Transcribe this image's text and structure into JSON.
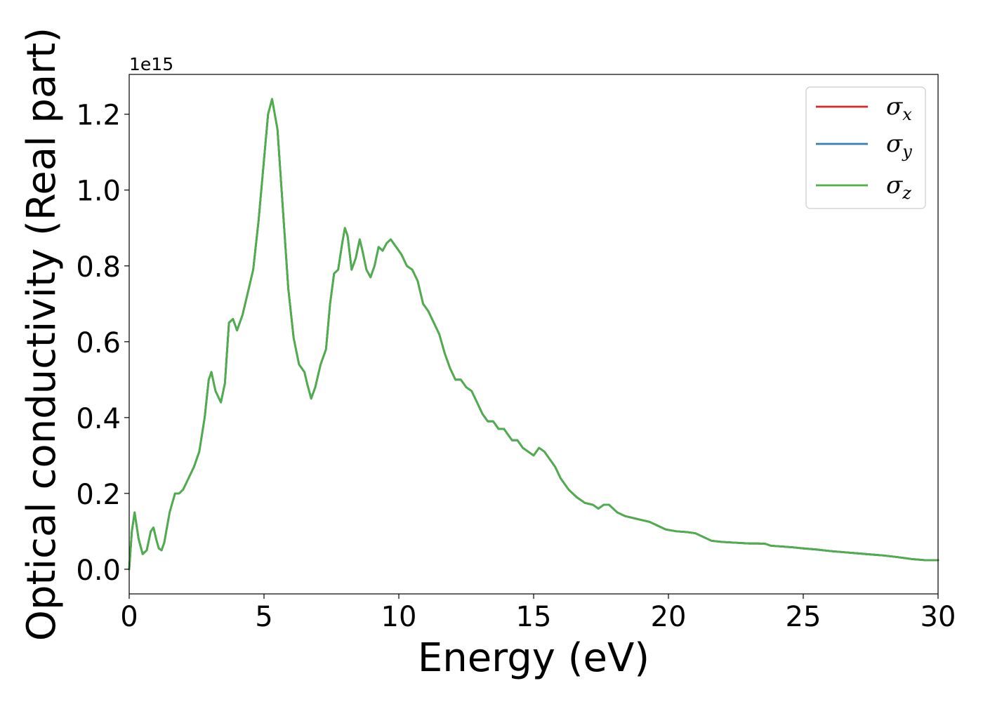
{
  "chart_data": {
    "type": "line",
    "title": "",
    "xlabel": "Energy (eV)",
    "ylabel": "Optical conductivity (Real part)",
    "y_offset_label": "1e15",
    "xlim": [
      0,
      30
    ],
    "ylim": [
      -0.065,
      1.305
    ],
    "x_ticks": [
      0,
      5,
      10,
      15,
      20,
      25,
      30
    ],
    "x_tick_labels": [
      "0",
      "5",
      "10",
      "15",
      "20",
      "25",
      "30"
    ],
    "y_ticks": [
      0.0,
      0.2,
      0.4,
      0.6,
      0.8,
      1.0,
      1.2
    ],
    "y_tick_labels": [
      "0.0",
      "0.2",
      "0.4",
      "0.6",
      "0.8",
      "1.0",
      "1.2"
    ],
    "grid": false,
    "legend_position": "top-right",
    "x": [
      0.0,
      0.1,
      0.2,
      0.35,
      0.5,
      0.65,
      0.8,
      0.9,
      1.0,
      1.1,
      1.2,
      1.3,
      1.5,
      1.7,
      1.85,
      2.0,
      2.2,
      2.4,
      2.6,
      2.8,
      2.95,
      3.05,
      3.2,
      3.4,
      3.55,
      3.7,
      3.85,
      4.0,
      4.2,
      4.4,
      4.6,
      4.8,
      5.0,
      5.15,
      5.3,
      5.5,
      5.7,
      5.9,
      6.1,
      6.3,
      6.5,
      6.6,
      6.75,
      6.9,
      7.1,
      7.3,
      7.45,
      7.6,
      7.75,
      7.9,
      8.0,
      8.1,
      8.25,
      8.4,
      8.55,
      8.65,
      8.8,
      8.95,
      9.1,
      9.25,
      9.4,
      9.55,
      9.7,
      9.9,
      10.1,
      10.3,
      10.5,
      10.7,
      10.9,
      11.1,
      11.3,
      11.5,
      11.7,
      11.9,
      12.1,
      12.3,
      12.5,
      12.7,
      12.9,
      13.1,
      13.3,
      13.5,
      13.7,
      13.9,
      14.0,
      14.2,
      14.4,
      14.6,
      14.8,
      15.0,
      15.2,
      15.4,
      15.6,
      15.8,
      16.0,
      16.3,
      16.6,
      16.9,
      17.2,
      17.4,
      17.6,
      17.8,
      18.1,
      18.4,
      18.7,
      19.0,
      19.3,
      19.6,
      19.9,
      20.3,
      20.7,
      21.0,
      21.3,
      21.6,
      22.0,
      22.5,
      23.0,
      23.3,
      23.6,
      23.8,
      24.2,
      24.6,
      25.0,
      25.5,
      26.0,
      26.5,
      27.0,
      27.5,
      28.0,
      28.5,
      29.0,
      29.5,
      30.0
    ],
    "series": [
      {
        "name": "σx",
        "color": "#d62728",
        "values": [
          0.0,
          0.1,
          0.15,
          0.08,
          0.04,
          0.05,
          0.1,
          0.11,
          0.08,
          0.055,
          0.05,
          0.07,
          0.15,
          0.2,
          0.2,
          0.21,
          0.24,
          0.27,
          0.31,
          0.4,
          0.5,
          0.52,
          0.47,
          0.44,
          0.49,
          0.65,
          0.66,
          0.63,
          0.67,
          0.73,
          0.79,
          0.92,
          1.08,
          1.2,
          1.24,
          1.16,
          0.95,
          0.74,
          0.61,
          0.54,
          0.52,
          0.49,
          0.45,
          0.48,
          0.54,
          0.58,
          0.7,
          0.78,
          0.79,
          0.86,
          0.9,
          0.88,
          0.79,
          0.82,
          0.87,
          0.84,
          0.79,
          0.77,
          0.8,
          0.85,
          0.84,
          0.86,
          0.87,
          0.85,
          0.83,
          0.8,
          0.79,
          0.76,
          0.7,
          0.68,
          0.65,
          0.62,
          0.57,
          0.53,
          0.5,
          0.5,
          0.48,
          0.47,
          0.44,
          0.41,
          0.39,
          0.39,
          0.37,
          0.37,
          0.36,
          0.34,
          0.34,
          0.32,
          0.31,
          0.3,
          0.32,
          0.31,
          0.29,
          0.27,
          0.24,
          0.21,
          0.19,
          0.175,
          0.17,
          0.16,
          0.17,
          0.17,
          0.15,
          0.14,
          0.135,
          0.13,
          0.125,
          0.115,
          0.105,
          0.1,
          0.098,
          0.095,
          0.085,
          0.075,
          0.072,
          0.07,
          0.068,
          0.068,
          0.067,
          0.062,
          0.06,
          0.058,
          0.055,
          0.052,
          0.048,
          0.045,
          0.042,
          0.039,
          0.036,
          0.032,
          0.027,
          0.024,
          0.024
        ]
      },
      {
        "name": "σy",
        "color": "#377eb8",
        "values": [
          0.0,
          0.1,
          0.15,
          0.08,
          0.04,
          0.05,
          0.1,
          0.11,
          0.08,
          0.055,
          0.05,
          0.07,
          0.15,
          0.2,
          0.2,
          0.21,
          0.24,
          0.27,
          0.31,
          0.4,
          0.5,
          0.52,
          0.47,
          0.44,
          0.49,
          0.65,
          0.66,
          0.63,
          0.67,
          0.73,
          0.79,
          0.92,
          1.08,
          1.2,
          1.24,
          1.16,
          0.95,
          0.74,
          0.61,
          0.54,
          0.52,
          0.49,
          0.45,
          0.48,
          0.54,
          0.58,
          0.7,
          0.78,
          0.79,
          0.86,
          0.9,
          0.88,
          0.79,
          0.82,
          0.87,
          0.84,
          0.79,
          0.77,
          0.8,
          0.85,
          0.84,
          0.86,
          0.87,
          0.85,
          0.83,
          0.8,
          0.79,
          0.76,
          0.7,
          0.68,
          0.65,
          0.62,
          0.57,
          0.53,
          0.5,
          0.5,
          0.48,
          0.47,
          0.44,
          0.41,
          0.39,
          0.39,
          0.37,
          0.37,
          0.36,
          0.34,
          0.34,
          0.32,
          0.31,
          0.3,
          0.32,
          0.31,
          0.29,
          0.27,
          0.24,
          0.21,
          0.19,
          0.175,
          0.17,
          0.16,
          0.17,
          0.17,
          0.15,
          0.14,
          0.135,
          0.13,
          0.125,
          0.115,
          0.105,
          0.1,
          0.098,
          0.095,
          0.085,
          0.075,
          0.072,
          0.07,
          0.068,
          0.068,
          0.067,
          0.062,
          0.06,
          0.058,
          0.055,
          0.052,
          0.048,
          0.045,
          0.042,
          0.039,
          0.036,
          0.032,
          0.027,
          0.024,
          0.024
        ]
      },
      {
        "name": "σz",
        "color": "#4daf4a",
        "values": [
          0.0,
          0.1,
          0.15,
          0.08,
          0.04,
          0.05,
          0.1,
          0.11,
          0.08,
          0.055,
          0.05,
          0.07,
          0.15,
          0.2,
          0.2,
          0.21,
          0.24,
          0.27,
          0.31,
          0.4,
          0.5,
          0.52,
          0.47,
          0.44,
          0.49,
          0.65,
          0.66,
          0.63,
          0.67,
          0.73,
          0.79,
          0.92,
          1.08,
          1.2,
          1.24,
          1.16,
          0.95,
          0.74,
          0.61,
          0.54,
          0.52,
          0.49,
          0.45,
          0.48,
          0.54,
          0.58,
          0.7,
          0.78,
          0.79,
          0.86,
          0.9,
          0.88,
          0.79,
          0.82,
          0.87,
          0.84,
          0.79,
          0.77,
          0.8,
          0.85,
          0.84,
          0.86,
          0.87,
          0.85,
          0.83,
          0.8,
          0.79,
          0.76,
          0.7,
          0.68,
          0.65,
          0.62,
          0.57,
          0.53,
          0.5,
          0.5,
          0.48,
          0.47,
          0.44,
          0.41,
          0.39,
          0.39,
          0.37,
          0.37,
          0.36,
          0.34,
          0.34,
          0.32,
          0.31,
          0.3,
          0.32,
          0.31,
          0.29,
          0.27,
          0.24,
          0.21,
          0.19,
          0.175,
          0.17,
          0.16,
          0.17,
          0.17,
          0.15,
          0.14,
          0.135,
          0.13,
          0.125,
          0.115,
          0.105,
          0.1,
          0.098,
          0.095,
          0.085,
          0.075,
          0.072,
          0.07,
          0.068,
          0.068,
          0.067,
          0.062,
          0.06,
          0.058,
          0.055,
          0.052,
          0.048,
          0.045,
          0.042,
          0.039,
          0.036,
          0.032,
          0.027,
          0.024,
          0.024
        ]
      }
    ],
    "legend": [
      {
        "base": "σ",
        "sub": "x"
      },
      {
        "base": "σ",
        "sub": "y"
      },
      {
        "base": "σ",
        "sub": "z"
      }
    ]
  }
}
